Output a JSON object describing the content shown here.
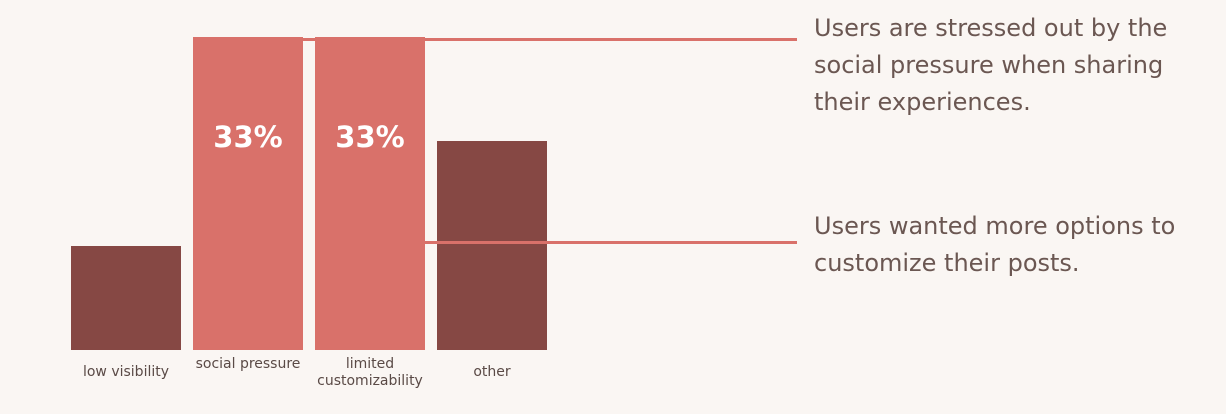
{
  "chart_data": {
    "type": "bar",
    "categories": [
      "low visibility",
      "social pressure",
      "limited customizability",
      "other"
    ],
    "values": [
      11,
      33,
      33,
      22
    ],
    "value_labels": [
      null,
      "33%",
      "33%",
      null
    ],
    "colors": [
      "#864844",
      "#d9716a",
      "#d9716a",
      "#864844"
    ],
    "annotations": [
      "Users are stressed out by the social pressure when sharing their experiences.",
      "Users wanted more options to customize their posts."
    ]
  }
}
